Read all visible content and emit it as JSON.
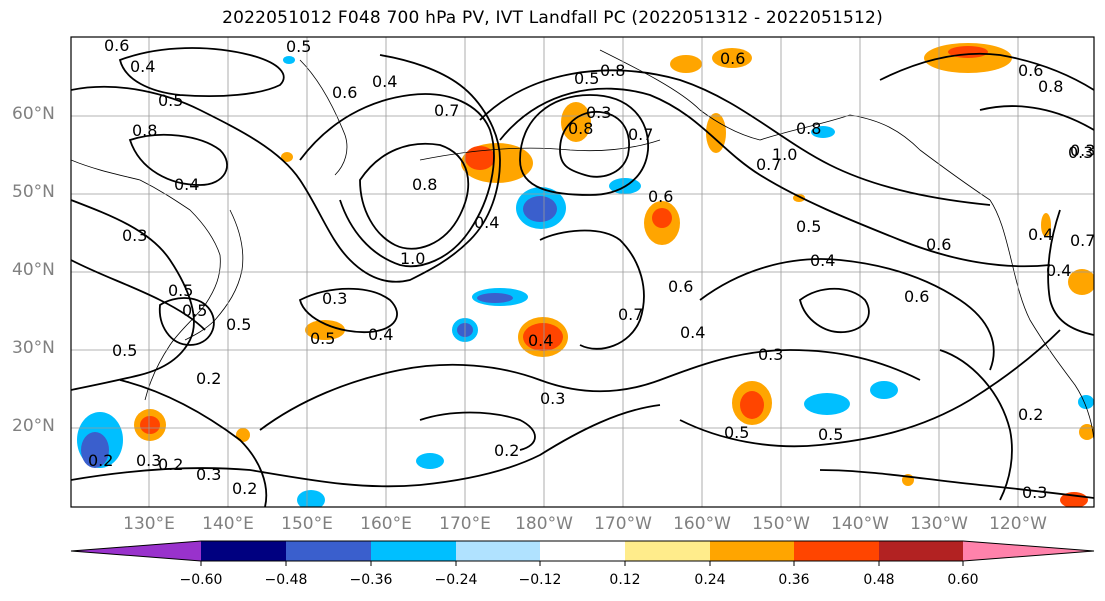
{
  "title": "2022051012 F048 700 hPa PV, IVT Landfall PC (2022051312 - 2022051512)",
  "lat_labels": [
    "60°N",
    "50°N",
    "40°N",
    "30°N",
    "20°N"
  ],
  "lon_labels": [
    "130°E",
    "140°E",
    "150°E",
    "160°E",
    "170°E",
    "180°W",
    "170°W",
    "160°W",
    "150°W",
    "140°W",
    "130°W",
    "120°W"
  ],
  "colorbar": {
    "ticks": [
      "−0.60",
      "−0.48",
      "−0.36",
      "−0.24",
      "−0.12",
      "0.12",
      "0.24",
      "0.36",
      "0.48",
      "0.60"
    ],
    "colors": [
      "#9932CC",
      "#000080",
      "#3A5FCD",
      "#00BFFF",
      "#B0E2FF",
      "#FFFFFF",
      "#FFEC8B",
      "#FFA500",
      "#FF4500",
      "#B22222",
      "#FF82AB"
    ]
  },
  "contour_labels": [
    "0.6",
    "0.5",
    "0.4",
    "0.5",
    "0.6",
    "0.8",
    "0.7",
    "0.4",
    "0.8",
    "1.0",
    "0.3",
    "0.7",
    "0.4",
    "0.8",
    "0.6",
    "0.8",
    "0.6",
    "0.7",
    "0.8",
    "0.3",
    "0.5",
    "0.4",
    "0.6",
    "1.0",
    "0.5",
    "0.3",
    "0.7",
    "0.6",
    "0.4",
    "0.5",
    "0.6",
    "0.8",
    "0.5",
    "0.4",
    "0.6",
    "0.4",
    "0.7",
    "0.3",
    "0.4",
    "0.3",
    "0.5",
    "0.2",
    "0.2",
    "0.3",
    "0.2",
    "0.3",
    "0.2",
    "0.5",
    "0.3",
    "0.5",
    "0.2",
    "0.3",
    "0.2",
    "0.3",
    "0.4",
    "0.5",
    "0.4",
    "0.5"
  ]
}
